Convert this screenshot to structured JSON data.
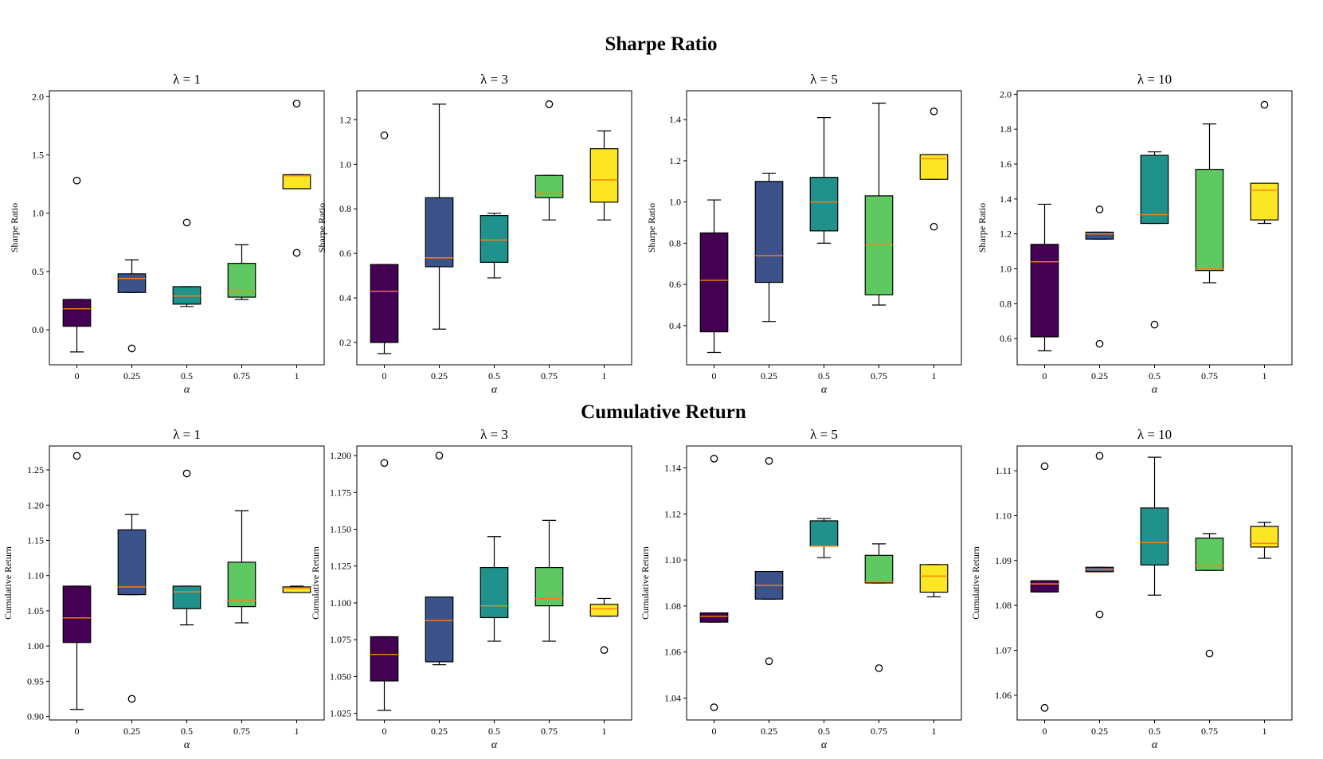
{
  "sections": [
    {
      "title": "Sharpe Ratio",
      "ylabel": "Sharpe Ratio"
    },
    {
      "title": "Cumulative Return",
      "ylabel": "Cumulative Return"
    }
  ],
  "colors": [
    "#440154",
    "#3b528b",
    "#21918c",
    "#5ec962",
    "#fde725"
  ],
  "median_color": "#ff7f0e",
  "chart_data": [
    {
      "type": "box",
      "section": 0,
      "title": "λ = 1",
      "xlabel": "α",
      "ylabel": "Sharpe Ratio",
      "categories": [
        "0",
        "0.25",
        "0.5",
        "0.75",
        "1"
      ],
      "ylim": [
        -0.3,
        2.05
      ],
      "yticks": [
        0.0,
        0.5,
        1.0,
        1.5,
        2.0
      ],
      "ytick_labels": [
        "0.0",
        "0.5",
        "1.0",
        "1.5",
        "2.0"
      ],
      "boxes": [
        {
          "whislo": -0.19,
          "q1": 0.03,
          "med": 0.18,
          "q3": 0.26,
          "whishi": 0.26,
          "fliers": [
            1.28
          ]
        },
        {
          "whislo": 0.32,
          "q1": 0.32,
          "med": 0.44,
          "q3": 0.48,
          "whishi": 0.6,
          "fliers": [
            -0.16
          ]
        },
        {
          "whislo": 0.2,
          "q1": 0.22,
          "med": 0.29,
          "q3": 0.37,
          "whishi": 0.37,
          "fliers": [
            0.92
          ]
        },
        {
          "whislo": 0.26,
          "q1": 0.28,
          "med": 0.33,
          "q3": 0.57,
          "whishi": 0.73,
          "fliers": []
        },
        {
          "whislo": 1.21,
          "q1": 1.21,
          "med": 1.32,
          "q3": 1.33,
          "whishi": 1.33,
          "fliers": [
            1.94,
            0.66
          ]
        }
      ]
    },
    {
      "type": "box",
      "section": 0,
      "title": "λ = 3",
      "xlabel": "α",
      "ylabel": "Sharpe Ratio",
      "categories": [
        "0",
        "0.25",
        "0.5",
        "0.75",
        "1"
      ],
      "ylim": [
        0.1,
        1.33
      ],
      "yticks": [
        0.2,
        0.4,
        0.6,
        0.8,
        1.0,
        1.2
      ],
      "ytick_labels": [
        "0.2",
        "0.4",
        "0.6",
        "0.8",
        "1.0",
        "1.2"
      ],
      "boxes": [
        {
          "whislo": 0.15,
          "q1": 0.2,
          "med": 0.43,
          "q3": 0.55,
          "whishi": 0.55,
          "fliers": [
            1.13
          ]
        },
        {
          "whislo": 0.26,
          "q1": 0.54,
          "med": 0.58,
          "q3": 0.85,
          "whishi": 1.27,
          "fliers": []
        },
        {
          "whislo": 0.49,
          "q1": 0.56,
          "med": 0.66,
          "q3": 0.77,
          "whishi": 0.78,
          "fliers": []
        },
        {
          "whislo": 0.75,
          "q1": 0.85,
          "med": 0.87,
          "q3": 0.95,
          "whishi": 0.95,
          "fliers": [
            1.27
          ]
        },
        {
          "whislo": 0.75,
          "q1": 0.83,
          "med": 0.93,
          "q3": 1.07,
          "whishi": 1.15,
          "fliers": []
        }
      ]
    },
    {
      "type": "box",
      "section": 0,
      "title": "λ = 5",
      "xlabel": "α",
      "ylabel": "Sharpe Ratio",
      "categories": [
        "0",
        "0.25",
        "0.5",
        "0.75",
        "1"
      ],
      "ylim": [
        0.21,
        1.54
      ],
      "yticks": [
        0.4,
        0.6,
        0.8,
        1.0,
        1.2,
        1.4
      ],
      "ytick_labels": [
        "0.4",
        "0.6",
        "0.8",
        "1.0",
        "1.2",
        "1.4"
      ],
      "boxes": [
        {
          "whislo": 0.27,
          "q1": 0.37,
          "med": 0.62,
          "q3": 0.85,
          "whishi": 1.01,
          "fliers": []
        },
        {
          "whislo": 0.42,
          "q1": 0.61,
          "med": 0.74,
          "q3": 1.1,
          "whishi": 1.14,
          "fliers": []
        },
        {
          "whislo": 0.8,
          "q1": 0.86,
          "med": 1.0,
          "q3": 1.12,
          "whishi": 1.41,
          "fliers": []
        },
        {
          "whislo": 0.5,
          "q1": 0.55,
          "med": 0.79,
          "q3": 1.03,
          "whishi": 1.48,
          "fliers": []
        },
        {
          "whislo": 1.11,
          "q1": 1.11,
          "med": 1.21,
          "q3": 1.23,
          "whishi": 1.23,
          "fliers": [
            1.44,
            0.88
          ]
        }
      ]
    },
    {
      "type": "box",
      "section": 0,
      "title": "λ = 10",
      "xlabel": "α",
      "ylabel": "Sharpe Ratio",
      "categories": [
        "0",
        "0.25",
        "0.5",
        "0.75",
        "1"
      ],
      "ylim": [
        0.45,
        2.02
      ],
      "yticks": [
        0.6,
        0.8,
        1.0,
        1.2,
        1.4,
        1.6,
        1.8,
        2.0
      ],
      "ytick_labels": [
        "0.6",
        "0.8",
        "1.0",
        "1.2",
        "1.4",
        "1.6",
        "1.8",
        "2.0"
      ],
      "boxes": [
        {
          "whislo": 0.53,
          "q1": 0.61,
          "med": 1.04,
          "q3": 1.14,
          "whishi": 1.37,
          "fliers": []
        },
        {
          "whislo": 1.17,
          "q1": 1.17,
          "med": 1.2,
          "q3": 1.21,
          "whishi": 1.21,
          "fliers": [
            1.34,
            0.57
          ]
        },
        {
          "whislo": 1.26,
          "q1": 1.26,
          "med": 1.31,
          "q3": 1.65,
          "whishi": 1.67,
          "fliers": [
            0.68
          ]
        },
        {
          "whislo": 0.92,
          "q1": 0.99,
          "med": 1.0,
          "q3": 1.57,
          "whishi": 1.83,
          "fliers": []
        },
        {
          "whislo": 1.26,
          "q1": 1.28,
          "med": 1.45,
          "q3": 1.49,
          "whishi": 1.49,
          "fliers": [
            1.94
          ]
        }
      ]
    },
    {
      "type": "box",
      "section": 1,
      "title": "λ = 1",
      "xlabel": "α",
      "ylabel": "Cumulative Return",
      "categories": [
        "0",
        "0.25",
        "0.5",
        "0.75",
        "1"
      ],
      "ylim": [
        0.895,
        1.284
      ],
      "yticks": [
        0.9,
        0.95,
        1.0,
        1.05,
        1.1,
        1.15,
        1.2,
        1.25
      ],
      "ytick_labels": [
        "0.90",
        "0.95",
        "1.00",
        "1.05",
        "1.10",
        "1.15",
        "1.20",
        "1.25"
      ],
      "boxes": [
        {
          "whislo": 0.91,
          "q1": 1.005,
          "med": 1.04,
          "q3": 1.085,
          "whishi": 1.085,
          "fliers": [
            1.27
          ]
        },
        {
          "whislo": 1.073,
          "q1": 1.073,
          "med": 1.084,
          "q3": 1.165,
          "whishi": 1.187,
          "fliers": [
            0.925
          ]
        },
        {
          "whislo": 1.03,
          "q1": 1.053,
          "med": 1.077,
          "q3": 1.085,
          "whishi": 1.085,
          "fliers": [
            1.245
          ]
        },
        {
          "whislo": 1.033,
          "q1": 1.056,
          "med": 1.065,
          "q3": 1.119,
          "whishi": 1.192,
          "fliers": []
        },
        {
          "whislo": 1.076,
          "q1": 1.076,
          "med": 1.082,
          "q3": 1.084,
          "whishi": 1.085,
          "fliers": []
        }
      ]
    },
    {
      "type": "box",
      "section": 1,
      "title": "λ = 3",
      "xlabel": "α",
      "ylabel": "Cumulative Return",
      "categories": [
        "0",
        "0.25",
        "0.5",
        "0.75",
        "1"
      ],
      "ylim": [
        1.0205,
        1.2065
      ],
      "yticks": [
        1.025,
        1.05,
        1.075,
        1.1,
        1.125,
        1.15,
        1.175,
        1.2
      ],
      "ytick_labels": [
        "1.025",
        "1.050",
        "1.075",
        "1.100",
        "1.125",
        "1.150",
        "1.175",
        "1.200"
      ],
      "boxes": [
        {
          "whislo": 1.027,
          "q1": 1.047,
          "med": 1.065,
          "q3": 1.077,
          "whishi": 1.077,
          "fliers": [
            1.195
          ]
        },
        {
          "whislo": 1.058,
          "q1": 1.06,
          "med": 1.088,
          "q3": 1.104,
          "whishi": 1.104,
          "fliers": [
            1.2
          ]
        },
        {
          "whislo": 1.074,
          "q1": 1.09,
          "med": 1.098,
          "q3": 1.124,
          "whishi": 1.145,
          "fliers": []
        },
        {
          "whislo": 1.074,
          "q1": 1.098,
          "med": 1.103,
          "q3": 1.124,
          "whishi": 1.156,
          "fliers": []
        },
        {
          "whislo": 1.091,
          "q1": 1.091,
          "med": 1.096,
          "q3": 1.099,
          "whishi": 1.103,
          "fliers": [
            1.068
          ]
        }
      ]
    },
    {
      "type": "box",
      "section": 1,
      "title": "λ = 5",
      "xlabel": "α",
      "ylabel": "Cumulative Return",
      "categories": [
        "0",
        "0.25",
        "0.5",
        "0.75",
        "1"
      ],
      "ylim": [
        1.0305,
        1.1495
      ],
      "yticks": [
        1.04,
        1.06,
        1.08,
        1.1,
        1.12,
        1.14
      ],
      "ytick_labels": [
        "1.04",
        "1.06",
        "1.08",
        "1.10",
        "1.12",
        "1.14"
      ],
      "boxes": [
        {
          "whislo": 1.073,
          "q1": 1.073,
          "med": 1.0755,
          "q3": 1.077,
          "whishi": 1.077,
          "fliers": [
            1.144,
            1.036
          ]
        },
        {
          "whislo": 1.083,
          "q1": 1.083,
          "med": 1.089,
          "q3": 1.095,
          "whishi": 1.095,
          "fliers": [
            1.143,
            1.056
          ]
        },
        {
          "whislo": 1.101,
          "q1": 1.106,
          "med": 1.106,
          "q3": 1.117,
          "whishi": 1.118,
          "fliers": []
        },
        {
          "whislo": 1.09,
          "q1": 1.09,
          "med": 1.0905,
          "q3": 1.102,
          "whishi": 1.107,
          "fliers": [
            1.053
          ]
        },
        {
          "whislo": 1.084,
          "q1": 1.086,
          "med": 1.093,
          "q3": 1.098,
          "whishi": 1.098,
          "fliers": []
        }
      ]
    },
    {
      "type": "box",
      "section": 1,
      "title": "λ = 10",
      "xlabel": "α",
      "ylabel": "Cumulative Return",
      "categories": [
        "0",
        "0.25",
        "0.5",
        "0.75",
        "1"
      ],
      "ylim": [
        1.0545,
        1.1155
      ],
      "yticks": [
        1.06,
        1.07,
        1.08,
        1.09,
        1.1,
        1.11
      ],
      "ytick_labels": [
        "1.06",
        "1.07",
        "1.08",
        "1.09",
        "1.10",
        "1.11"
      ],
      "boxes": [
        {
          "whislo": 1.083,
          "q1": 1.083,
          "med": 1.0848,
          "q3": 1.0855,
          "whishi": 1.0855,
          "fliers": [
            1.111,
            1.0572
          ]
        },
        {
          "whislo": 1.0875,
          "q1": 1.0875,
          "med": 1.088,
          "q3": 1.0885,
          "whishi": 1.0885,
          "fliers": [
            1.1133,
            1.078
          ]
        },
        {
          "whislo": 1.0823,
          "q1": 1.089,
          "med": 1.094,
          "q3": 1.1017,
          "whishi": 1.113,
          "fliers": []
        },
        {
          "whislo": 1.0878,
          "q1": 1.0878,
          "med": 1.0889,
          "q3": 1.095,
          "whishi": 1.096,
          "fliers": [
            1.0693
          ]
        },
        {
          "whislo": 1.0905,
          "q1": 1.093,
          "med": 1.0938,
          "q3": 1.0976,
          "whishi": 1.0985,
          "fliers": []
        }
      ]
    }
  ]
}
